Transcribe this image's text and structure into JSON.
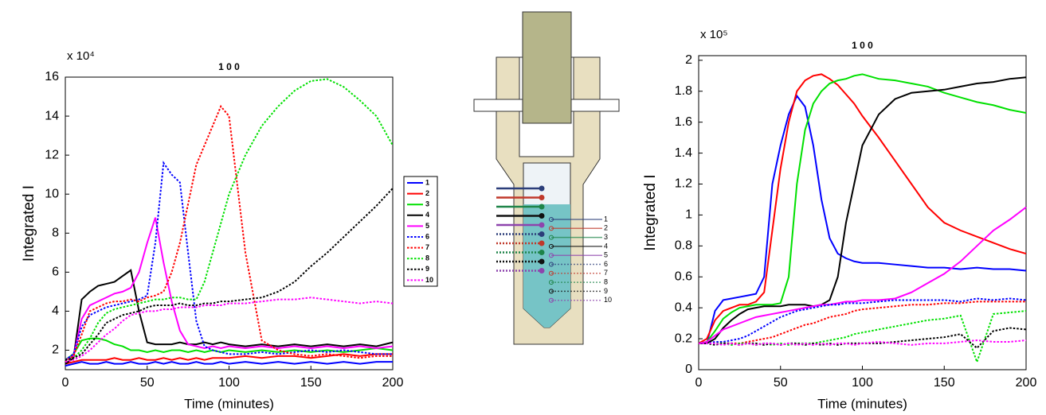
{
  "chart_data": [
    {
      "type": "line",
      "title": "1 0 0",
      "exponent": "x 10⁴",
      "xlabel": "Time (minutes)",
      "ylabel": "Integrated I",
      "x": [
        0,
        5,
        10,
        15,
        20,
        25,
        30,
        35,
        40,
        45,
        50,
        55,
        60,
        65,
        70,
        75,
        80,
        85,
        90,
        95,
        100,
        110,
        120,
        130,
        140,
        150,
        160,
        170,
        180,
        190,
        200
      ],
      "xlim": [
        0,
        200
      ],
      "xticks": [
        0,
        50,
        100,
        150,
        200
      ],
      "ylim": [
        1,
        16
      ],
      "yticks": [
        2,
        4,
        6,
        8,
        10,
        12,
        14,
        16
      ],
      "legend": "right",
      "series": [
        {
          "name": "1",
          "color": "#0000ff",
          "style": "solid",
          "values": [
            1.2,
            1.3,
            1.4,
            1.3,
            1.3,
            1.4,
            1.3,
            1.3,
            1.4,
            1.3,
            1.3,
            1.4,
            1.3,
            1.4,
            1.3,
            1.3,
            1.4,
            1.3,
            1.3,
            1.4,
            1.3,
            1.4,
            1.3,
            1.4,
            1.3,
            1.4,
            1.3,
            1.4,
            1.3,
            1.4,
            1.4
          ]
        },
        {
          "name": "2",
          "color": "#ff0000",
          "style": "solid",
          "values": [
            1.3,
            1.4,
            1.5,
            1.5,
            1.5,
            1.5,
            1.6,
            1.5,
            1.5,
            1.6,
            1.5,
            1.5,
            1.6,
            1.5,
            1.6,
            1.5,
            1.6,
            1.5,
            1.6,
            1.6,
            1.6,
            1.7,
            1.6,
            1.7,
            1.7,
            1.6,
            1.7,
            1.8,
            1.7,
            1.8,
            1.8
          ]
        },
        {
          "name": "3",
          "color": "#00e000",
          "style": "solid",
          "values": [
            1.5,
            1.8,
            2.5,
            2.6,
            2.6,
            2.5,
            2.3,
            2.2,
            2.0,
            2.0,
            1.9,
            2.0,
            1.9,
            2.0,
            2.0,
            1.9,
            2.0,
            1.9,
            2.0,
            1.9,
            2.0,
            1.9,
            2.0,
            1.9,
            2.0,
            1.9,
            2.0,
            1.9,
            2.0,
            2.1,
            2.0
          ]
        },
        {
          "name": "4",
          "color": "#000000",
          "style": "solid",
          "values": [
            1.3,
            1.6,
            4.6,
            5.0,
            5.3,
            5.4,
            5.5,
            5.8,
            6.1,
            4.0,
            2.4,
            2.3,
            2.3,
            2.3,
            2.4,
            2.3,
            2.3,
            2.4,
            2.3,
            2.4,
            2.3,
            2.2,
            2.3,
            2.2,
            2.3,
            2.2,
            2.3,
            2.2,
            2.3,
            2.2,
            2.4
          ]
        },
        {
          "name": "5",
          "color": "#ff00ff",
          "style": "solid",
          "values": [
            1.5,
            1.7,
            3.6,
            4.3,
            4.5,
            4.7,
            4.9,
            5.0,
            5.2,
            6.0,
            7.5,
            8.8,
            6.5,
            4.5,
            3.0,
            2.3,
            2.2,
            2.1,
            2.2,
            2.1,
            2.2,
            2.1,
            2.2,
            2.1,
            2.2,
            2.1,
            2.2,
            2.1,
            2.2,
            2.1,
            2.2
          ]
        },
        {
          "name": "6",
          "color": "#0000ff",
          "style": "dotted",
          "values": [
            1.5,
            1.8,
            3.2,
            3.8,
            4.0,
            4.2,
            4.3,
            4.4,
            4.5,
            4.6,
            4.8,
            7.5,
            11.6,
            11.0,
            10.6,
            7.0,
            3.5,
            2.2,
            2.0,
            1.9,
            1.8,
            1.8,
            1.9,
            1.8,
            1.9,
            2.0,
            1.9,
            2.0,
            1.9,
            1.8,
            1.8
          ]
        },
        {
          "name": "7",
          "color": "#ff0000",
          "style": "dotted",
          "values": [
            1.4,
            1.7,
            2.8,
            4.0,
            4.2,
            4.4,
            4.5,
            4.5,
            4.6,
            4.5,
            4.7,
            4.8,
            5.0,
            6.0,
            7.5,
            9.5,
            11.5,
            12.5,
            13.5,
            14.5,
            14.0,
            7.0,
            2.5,
            2.0,
            1.8,
            1.7,
            1.8,
            1.7,
            1.6,
            1.7,
            1.7
          ]
        },
        {
          "name": "8",
          "color": "#00e000",
          "style": "dotted",
          "values": [
            1.5,
            1.6,
            2.0,
            2.6,
            3.4,
            3.9,
            4.1,
            4.2,
            4.3,
            4.4,
            4.5,
            4.6,
            4.6,
            4.7,
            4.7,
            4.6,
            4.6,
            5.5,
            7.0,
            8.5,
            10.0,
            12.0,
            13.5,
            14.5,
            15.3,
            15.8,
            15.9,
            15.5,
            14.8,
            14.0,
            12.5
          ]
        },
        {
          "name": "9",
          "color": "#000000",
          "style": "dotted",
          "values": [
            1.5,
            1.6,
            1.8,
            2.3,
            2.8,
            3.4,
            3.6,
            3.8,
            3.9,
            4.0,
            4.2,
            4.3,
            4.3,
            4.3,
            4.4,
            4.3,
            4.3,
            4.4,
            4.4,
            4.5,
            4.5,
            4.6,
            4.7,
            5.0,
            5.5,
            6.3,
            7.0,
            7.8,
            8.6,
            9.4,
            10.3
          ]
        },
        {
          "name": "10",
          "color": "#ff00ff",
          "style": "dotted",
          "values": [
            1.4,
            1.5,
            1.7,
            2.0,
            2.4,
            2.8,
            3.1,
            3.5,
            3.8,
            3.9,
            4.0,
            4.0,
            4.1,
            4.1,
            4.2,
            4.2,
            4.2,
            4.3,
            4.3,
            4.3,
            4.4,
            4.4,
            4.5,
            4.6,
            4.6,
            4.7,
            4.6,
            4.5,
            4.4,
            4.5,
            4.4
          ]
        }
      ]
    },
    {
      "type": "line",
      "title": "1 0 0",
      "exponent": "x 10⁵",
      "xlabel": "Time (minutes)",
      "ylabel": "Integrated I",
      "x": [
        0,
        5,
        10,
        15,
        20,
        25,
        30,
        35,
        40,
        45,
        50,
        55,
        60,
        65,
        70,
        75,
        80,
        85,
        90,
        95,
        100,
        110,
        120,
        130,
        140,
        150,
        160,
        170,
        180,
        190,
        200
      ],
      "xlim": [
        0,
        200
      ],
      "xticks": [
        0,
        50,
        100,
        150,
        200
      ],
      "ylim": [
        0,
        2.03
      ],
      "yticks": [
        0,
        0.2,
        0.4,
        0.6,
        0.8,
        1,
        1.2,
        1.4,
        1.6,
        1.8,
        2
      ],
      "series": [
        {
          "color": "#0000ff",
          "style": "solid",
          "values": [
            0.17,
            0.17,
            0.38,
            0.45,
            0.46,
            0.47,
            0.48,
            0.49,
            0.6,
            1.2,
            1.45,
            1.65,
            1.77,
            1.7,
            1.45,
            1.1,
            0.85,
            0.75,
            0.72,
            0.7,
            0.69,
            0.69,
            0.68,
            0.67,
            0.66,
            0.66,
            0.65,
            0.66,
            0.65,
            0.65,
            0.64
          ]
        },
        {
          "color": "#ff0000",
          "style": "solid",
          "values": [
            0.17,
            0.2,
            0.32,
            0.38,
            0.4,
            0.42,
            0.42,
            0.44,
            0.5,
            0.9,
            1.3,
            1.6,
            1.8,
            1.87,
            1.9,
            1.91,
            1.88,
            1.84,
            1.78,
            1.72,
            1.64,
            1.5,
            1.35,
            1.2,
            1.05,
            0.95,
            0.9,
            0.86,
            0.82,
            0.78,
            0.75
          ]
        },
        {
          "color": "#00e000",
          "style": "solid",
          "values": [
            0.17,
            0.18,
            0.25,
            0.33,
            0.37,
            0.4,
            0.41,
            0.42,
            0.42,
            0.42,
            0.43,
            0.6,
            1.2,
            1.55,
            1.72,
            1.8,
            1.85,
            1.87,
            1.88,
            1.9,
            1.91,
            1.88,
            1.87,
            1.85,
            1.83,
            1.79,
            1.76,
            1.73,
            1.71,
            1.68,
            1.66
          ]
        },
        {
          "color": "#000000",
          "style": "solid",
          "values": [
            0.17,
            0.17,
            0.2,
            0.27,
            0.32,
            0.36,
            0.39,
            0.4,
            0.41,
            0.41,
            0.41,
            0.42,
            0.42,
            0.42,
            0.41,
            0.42,
            0.45,
            0.6,
            0.95,
            1.2,
            1.45,
            1.65,
            1.75,
            1.79,
            1.8,
            1.81,
            1.83,
            1.85,
            1.86,
            1.88,
            1.89
          ]
        },
        {
          "color": "#ff00ff",
          "style": "solid",
          "values": [
            0.17,
            0.18,
            0.22,
            0.26,
            0.28,
            0.3,
            0.32,
            0.34,
            0.35,
            0.36,
            0.37,
            0.38,
            0.39,
            0.4,
            0.41,
            0.42,
            0.42,
            0.43,
            0.44,
            0.44,
            0.45,
            0.45,
            0.46,
            0.5,
            0.56,
            0.62,
            0.7,
            0.8,
            0.9,
            0.97,
            1.05
          ]
        },
        {
          "color": "#0000ff",
          "style": "dotted",
          "values": [
            0.17,
            0.17,
            0.18,
            0.18,
            0.19,
            0.2,
            0.22,
            0.25,
            0.28,
            0.31,
            0.34,
            0.36,
            0.38,
            0.39,
            0.4,
            0.41,
            0.42,
            0.42,
            0.43,
            0.43,
            0.43,
            0.44,
            0.45,
            0.45,
            0.45,
            0.45,
            0.44,
            0.46,
            0.45,
            0.46,
            0.45
          ]
        },
        {
          "color": "#ff0000",
          "style": "dotted",
          "values": [
            0.17,
            0.17,
            0.17,
            0.17,
            0.17,
            0.17,
            0.18,
            0.19,
            0.2,
            0.21,
            0.23,
            0.25,
            0.27,
            0.29,
            0.3,
            0.32,
            0.34,
            0.35,
            0.36,
            0.38,
            0.39,
            0.4,
            0.41,
            0.42,
            0.42,
            0.43,
            0.43,
            0.44,
            0.44,
            0.44,
            0.44
          ]
        },
        {
          "color": "#00e000",
          "style": "dotted",
          "values": [
            0.17,
            0.17,
            0.17,
            0.17,
            0.16,
            0.17,
            0.17,
            0.16,
            0.17,
            0.16,
            0.17,
            0.16,
            0.17,
            0.17,
            0.17,
            0.18,
            0.19,
            0.2,
            0.21,
            0.23,
            0.24,
            0.26,
            0.28,
            0.3,
            0.32,
            0.33,
            0.35,
            0.05,
            0.36,
            0.37,
            0.38
          ]
        },
        {
          "color": "#000000",
          "style": "dotted",
          "values": [
            0.17,
            0.17,
            0.16,
            0.17,
            0.17,
            0.16,
            0.17,
            0.17,
            0.16,
            0.17,
            0.16,
            0.17,
            0.17,
            0.16,
            0.17,
            0.16,
            0.17,
            0.16,
            0.17,
            0.17,
            0.17,
            0.17,
            0.18,
            0.19,
            0.2,
            0.21,
            0.23,
            0.14,
            0.25,
            0.27,
            0.26
          ]
        },
        {
          "color": "#ff00ff",
          "style": "dotted",
          "values": [
            0.17,
            0.17,
            0.17,
            0.16,
            0.17,
            0.16,
            0.17,
            0.16,
            0.17,
            0.17,
            0.16,
            0.17,
            0.16,
            0.17,
            0.16,
            0.17,
            0.16,
            0.17,
            0.17,
            0.16,
            0.17,
            0.18,
            0.17,
            0.16,
            0.17,
            0.17,
            0.18,
            0.19,
            0.18,
            0.18,
            0.19
          ]
        }
      ]
    }
  ],
  "diagram": {
    "labels": [
      "1",
      "2",
      "3",
      "4",
      "5",
      "6",
      "7",
      "8",
      "9",
      "10"
    ]
  }
}
